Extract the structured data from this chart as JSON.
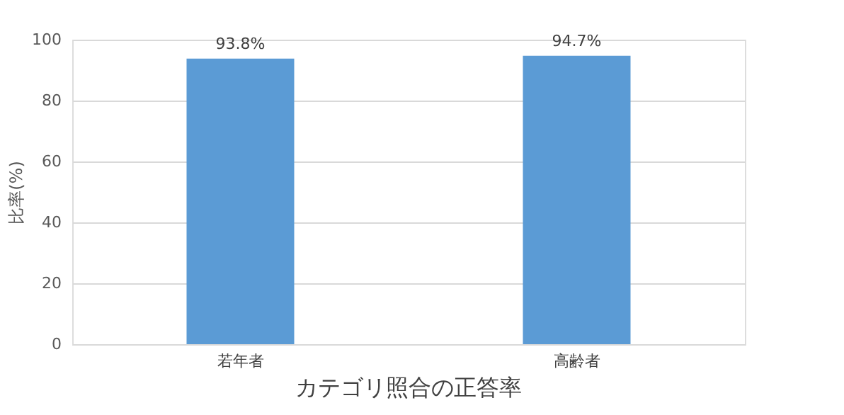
{
  "chart_data": {
    "type": "bar",
    "title": "カテゴリ照合の正答率",
    "ylabel": "比率(%)",
    "categories": [
      "若年者",
      "高齢者"
    ],
    "values": [
      93.8,
      94.7
    ],
    "value_labels": [
      "93.8%",
      "94.7%"
    ],
    "color": "#5b9bd5",
    "ylim": [
      0,
      100
    ],
    "yticks": [
      0,
      20,
      40,
      60,
      80,
      100
    ],
    "grid": "y"
  }
}
